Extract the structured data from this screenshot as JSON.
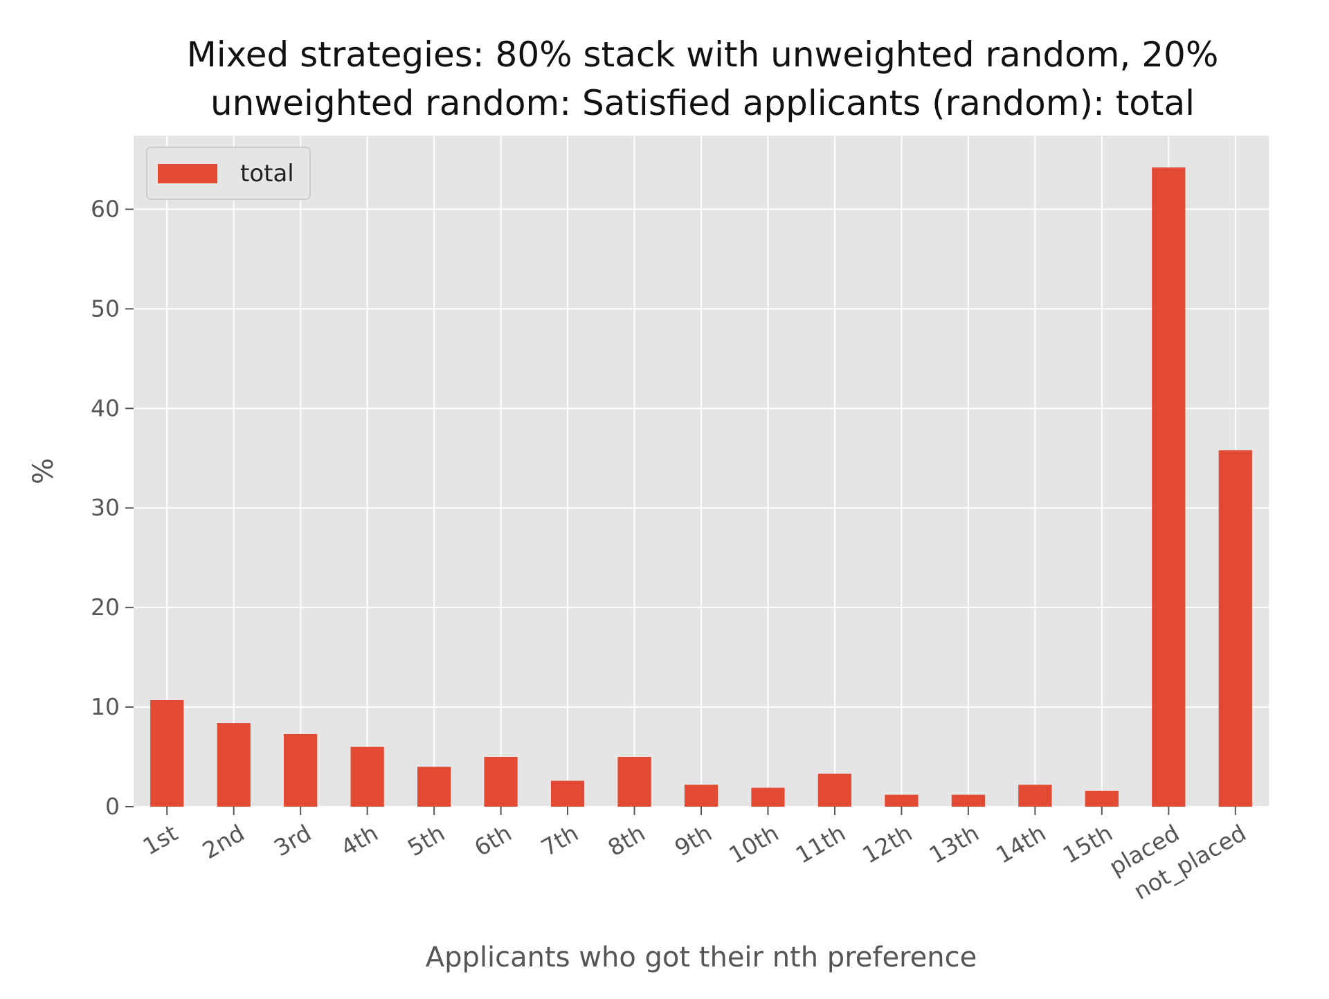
{
  "chart_data": {
    "type": "bar",
    "title": "Mixed strategies: 80% stack with unweighted random, 20% unweighted random: Satisfied applicants (random): total",
    "title_lines": [
      "Mixed strategies: 80% stack with unweighted random, 20%",
      "unweighted random: Satisfied applicants (random): total"
    ],
    "xlabel": "Applicants who got their nth preference",
    "ylabel": "%",
    "categories": [
      "1st",
      "2nd",
      "3rd",
      "4th",
      "5th",
      "6th",
      "7th",
      "8th",
      "9th",
      "10th",
      "11th",
      "12th",
      "13th",
      "14th",
      "15th",
      "placed",
      "not_placed"
    ],
    "series": [
      {
        "name": "total",
        "color": "#E24A33",
        "values": [
          10.7,
          8.4,
          7.3,
          6.0,
          4.0,
          5.0,
          2.6,
          5.0,
          2.2,
          1.9,
          3.3,
          1.2,
          1.2,
          2.2,
          1.6,
          64.2,
          35.8
        ]
      }
    ],
    "ylim": [
      0,
      67.4
    ],
    "yticks": [
      0,
      10,
      20,
      30,
      40,
      50,
      60
    ],
    "grid": true,
    "legend": "top-left",
    "background_color": "#E5E5E5",
    "grid_color": "#FFFFFF"
  }
}
